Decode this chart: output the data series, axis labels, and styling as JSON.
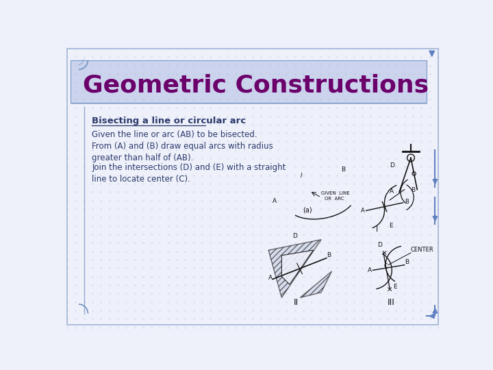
{
  "title": "Geometric Constructions",
  "title_color": "#6B006B",
  "title_fontsize": 26,
  "title_bold": true,
  "slide_bg": "#EEF0FA",
  "header_bg": "#C8D0EC",
  "subtitle": "Bisecting a line or circular arc",
  "subtitle_color": "#2B3A6B",
  "subtitle_fontsize": 9.5,
  "body_lines": [
    "Given the line or arc (AB) to be bisected.",
    "From (A) and (B) draw equal arcs with radius\ngreater than half of (AB).",
    "Join the intersections (D) and (E) with a straight\nline to locate center (C)."
  ],
  "body_color": "#2B3A6B",
  "body_fontsize": 8.5,
  "grid_color": "#9AAAD0",
  "border_color": "#7090C0",
  "nav_arrow_color": "#6080C0",
  "diagram_color": "#111111"
}
